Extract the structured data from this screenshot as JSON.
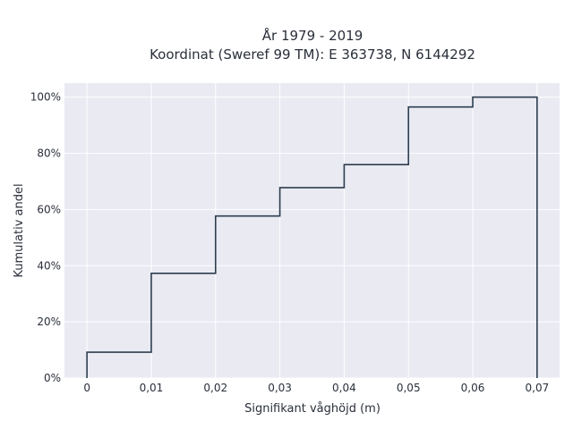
{
  "chart_data": {
    "type": "line",
    "line_shape": "step",
    "title_line1": "År 1979 - 2019",
    "title_line2": "Koordinat (Sweref 99 TM): E 363738, N 6144292",
    "xlabel": "Signifikant våghöjd (m)",
    "ylabel": "Kumulativ andel",
    "x_ticks": [
      "0",
      "0,01",
      "0,02",
      "0,03",
      "0,04",
      "0,05",
      "0,06",
      "0,07"
    ],
    "y_ticks": [
      "0%",
      "20%",
      "40%",
      "60%",
      "80%",
      "100%"
    ],
    "xlim": [
      -0.0035,
      0.0735
    ],
    "ylim": [
      0,
      1.05
    ],
    "grid": true,
    "plot_bg": "#e9eaf2",
    "line_color": "#2d3e50",
    "series": [
      {
        "x": [
          0,
          0.01,
          0.02,
          0.03,
          0.04,
          0.05,
          0.06,
          0.07
        ],
        "y": [
          0.092,
          0.373,
          0.577,
          0.678,
          0.76,
          0.965,
          1.0,
          0.0
        ]
      }
    ]
  }
}
